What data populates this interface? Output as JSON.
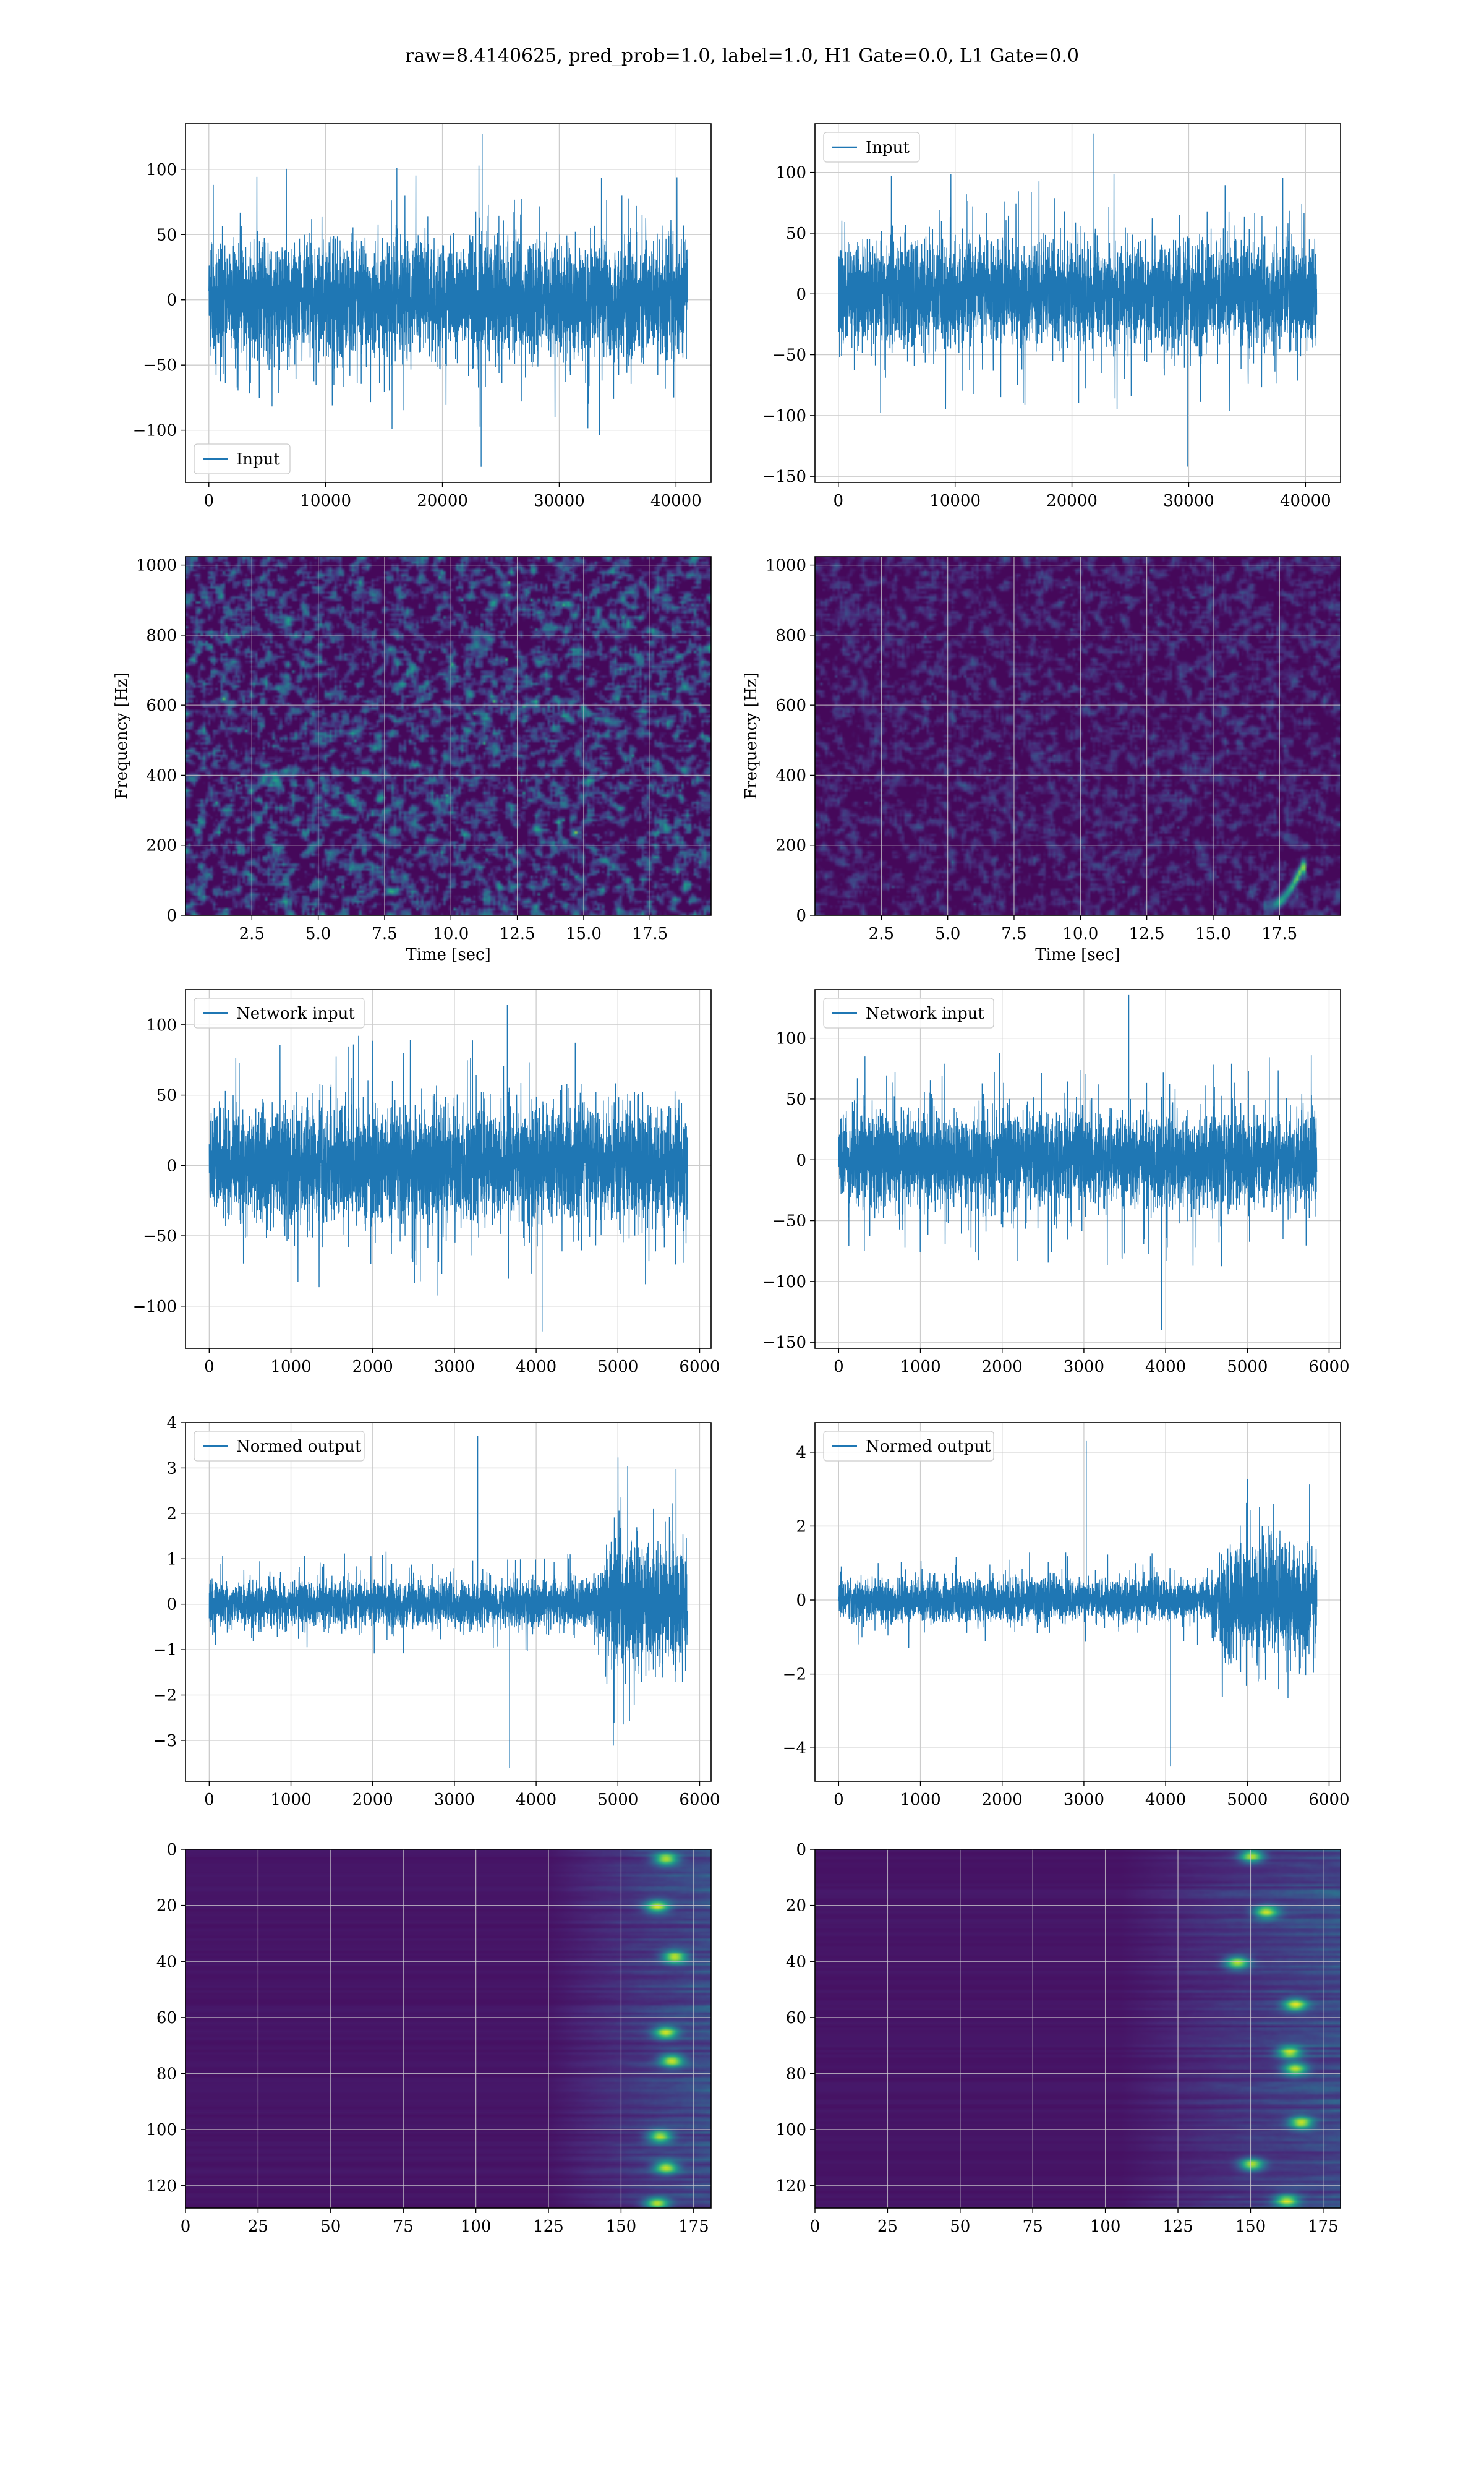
{
  "figure": {
    "suptitle": "raw=8.4140625, pred_prob=1.0, label=1.0, H1 Gate=0.0, L1 Gate=0.0"
  },
  "colors": {
    "line": "#1f77b4",
    "grid": "#cccccc",
    "viridis_low": "#440154",
    "viridis_mid": "#21918c",
    "viridis_high": "#fde725"
  },
  "chart_data": [
    {
      "id": "input-h1",
      "type": "line",
      "row": 0,
      "col": 0,
      "legend": {
        "label": "Input",
        "loc": "lower-left"
      },
      "xlim": [
        -2000,
        43000
      ],
      "ylim": [
        -140,
        135
      ],
      "xticks": [
        0,
        10000,
        20000,
        30000,
        40000
      ],
      "xticklabels": [
        "0",
        "10000",
        "20000",
        "30000",
        "40000"
      ],
      "yticks": [
        -100,
        -50,
        0,
        50,
        100
      ],
      "yticklabels": [
        "−100",
        "−50",
        "0",
        "50",
        "100"
      ],
      "grid": true,
      "signal": {
        "n": 40960,
        "x_start": 0,
        "x_end": 40960,
        "band": 40,
        "spike_max": 127,
        "spike_min": -128
      }
    },
    {
      "id": "input-l1",
      "type": "line",
      "row": 0,
      "col": 1,
      "legend": {
        "label": "Input",
        "loc": "upper-left"
      },
      "xlim": [
        -2000,
        43000
      ],
      "ylim": [
        -155,
        140
      ],
      "xticks": [
        0,
        10000,
        20000,
        30000,
        40000
      ],
      "xticklabels": [
        "0",
        "10000",
        "20000",
        "30000",
        "40000"
      ],
      "yticks": [
        -150,
        -100,
        -50,
        0,
        50,
        100
      ],
      "yticklabels": [
        "−150",
        "−100",
        "−50",
        "0",
        "50",
        "100"
      ],
      "grid": true,
      "signal": {
        "n": 40960,
        "x_start": 0,
        "x_end": 40960,
        "band": 38,
        "spike_max": 132,
        "spike_min": -142
      }
    },
    {
      "id": "spectrogram-h1",
      "type": "heatmap",
      "row": 1,
      "col": 0,
      "xlabel": "Time [sec]",
      "ylabel": "Frequency [Hz]",
      "xlim": [
        0,
        19.8
      ],
      "ylim": [
        0,
        1024
      ],
      "xticks": [
        2.5,
        5.0,
        7.5,
        10.0,
        12.5,
        15.0,
        17.5
      ],
      "xticklabels": [
        "2.5",
        "5.0",
        "7.5",
        "10.0",
        "12.5",
        "15.0",
        "17.5"
      ],
      "yticks": [
        0,
        200,
        400,
        600,
        800,
        1000
      ],
      "yticklabels": [
        "0",
        "200",
        "400",
        "600",
        "800",
        "1000"
      ],
      "grid": true,
      "colormap": "viridis",
      "noise_level": 0.28,
      "chirp": null
    },
    {
      "id": "spectrogram-l1",
      "type": "heatmap",
      "row": 1,
      "col": 1,
      "xlabel": "Time [sec]",
      "ylabel": "Frequency [Hz]",
      "xlim": [
        0,
        19.8
      ],
      "ylim": [
        0,
        1024
      ],
      "xticks": [
        2.5,
        5.0,
        7.5,
        10.0,
        12.5,
        15.0,
        17.5
      ],
      "xticklabels": [
        "2.5",
        "5.0",
        "7.5",
        "10.0",
        "12.5",
        "15.0",
        "17.5"
      ],
      "yticks": [
        0,
        200,
        400,
        600,
        800,
        1000
      ],
      "yticklabels": [
        "0",
        "200",
        "400",
        "600",
        "800",
        "1000"
      ],
      "grid": true,
      "colormap": "viridis",
      "noise_level": 0.13,
      "chirp": {
        "t_start": 17.0,
        "t_end": 18.3,
        "f_start": 30,
        "f_end": 140
      }
    },
    {
      "id": "network-input-h1",
      "type": "line",
      "row": 2,
      "col": 0,
      "legend": {
        "label": "Network input",
        "loc": "upper-left"
      },
      "xlim": [
        -290,
        6140
      ],
      "ylim": [
        -130,
        125
      ],
      "xticks": [
        0,
        1000,
        2000,
        3000,
        4000,
        5000,
        6000
      ],
      "xticklabels": [
        "0",
        "1000",
        "2000",
        "3000",
        "4000",
        "5000",
        "6000"
      ],
      "yticks": [
        -100,
        -50,
        0,
        50,
        100
      ],
      "yticklabels": [
        "−100",
        "−50",
        "0",
        "50",
        "100"
      ],
      "grid": true,
      "signal": {
        "n": 5850,
        "x_start": 0,
        "x_end": 5850,
        "band": 36,
        "spike_max": 114,
        "spike_min": -118
      }
    },
    {
      "id": "network-input-l1",
      "type": "line",
      "row": 2,
      "col": 1,
      "legend": {
        "label": "Network input",
        "loc": "upper-left"
      },
      "xlim": [
        -290,
        6140
      ],
      "ylim": [
        -155,
        140
      ],
      "xticks": [
        0,
        1000,
        2000,
        3000,
        4000,
        5000,
        6000
      ],
      "xticklabels": [
        "0",
        "1000",
        "2000",
        "3000",
        "4000",
        "5000",
        "6000"
      ],
      "yticks": [
        -150,
        -100,
        -50,
        0,
        50,
        100
      ],
      "yticklabels": [
        "−150",
        "−100",
        "−50",
        "0",
        "50",
        "100"
      ],
      "grid": true,
      "signal": {
        "n": 5850,
        "x_start": 0,
        "x_end": 5850,
        "band": 34,
        "spike_max": 136,
        "spike_min": -140
      }
    },
    {
      "id": "normed-output-h1",
      "type": "line",
      "row": 3,
      "col": 0,
      "legend": {
        "label": "Normed output",
        "loc": "upper-left"
      },
      "xlim": [
        -290,
        6140
      ],
      "ylim": [
        -3.9,
        4.0
      ],
      "xticks": [
        0,
        1000,
        2000,
        3000,
        4000,
        5000,
        6000
      ],
      "xticklabels": [
        "0",
        "1000",
        "2000",
        "3000",
        "4000",
        "5000",
        "6000"
      ],
      "yticks": [
        -3,
        -2,
        -1,
        0,
        1,
        2,
        3,
        4
      ],
      "yticklabels": [
        "−3",
        "−2",
        "−1",
        "0",
        "1",
        "2",
        "3",
        "4"
      ],
      "grid": true,
      "signal": {
        "n": 5850,
        "x_start": 0,
        "x_end": 5850,
        "band": 0.45,
        "spike_max": 3.7,
        "spike_min": -3.6,
        "burst_start": 4700,
        "burst_band": 1.25
      }
    },
    {
      "id": "normed-output-l1",
      "type": "line",
      "row": 3,
      "col": 1,
      "legend": {
        "label": "Normed output",
        "loc": "upper-left"
      },
      "xlim": [
        -290,
        6140
      ],
      "ylim": [
        -4.9,
        4.8
      ],
      "xticks": [
        0,
        1000,
        2000,
        3000,
        4000,
        5000,
        6000
      ],
      "xticklabels": [
        "0",
        "1000",
        "2000",
        "3000",
        "4000",
        "5000",
        "6000"
      ],
      "yticks": [
        -4,
        -2,
        0,
        2,
        4
      ],
      "yticklabels": [
        "−4",
        "−2",
        "0",
        "2",
        "4"
      ],
      "grid": true,
      "signal": {
        "n": 5850,
        "x_start": 0,
        "x_end": 5850,
        "band": 0.5,
        "spike_max": 4.3,
        "spike_min": -4.5,
        "burst_start": 4550,
        "burst_band": 1.4
      }
    },
    {
      "id": "feature-map-h1",
      "type": "heatmap",
      "row": 4,
      "col": 0,
      "xlim": [
        0,
        181
      ],
      "ylim": [
        128,
        0
      ],
      "xticks": [
        0,
        25,
        50,
        75,
        100,
        125,
        150,
        175
      ],
      "xticklabels": [
        "0",
        "25",
        "50",
        "75",
        "100",
        "125",
        "150",
        "175"
      ],
      "yticks": [
        0,
        20,
        40,
        60,
        80,
        100,
        120
      ],
      "yticklabels": [
        "0",
        "20",
        "40",
        "60",
        "80",
        "100",
        "120"
      ],
      "grid": true,
      "colormap": "viridis",
      "activity_onset": 125,
      "hotspots": [
        [
          165,
          3
        ],
        [
          162,
          20
        ],
        [
          168,
          38
        ],
        [
          165,
          65
        ],
        [
          167,
          75
        ],
        [
          163,
          102
        ],
        [
          165,
          113
        ],
        [
          162,
          126
        ]
      ]
    },
    {
      "id": "feature-map-l1",
      "type": "heatmap",
      "row": 4,
      "col": 1,
      "xlim": [
        0,
        181
      ],
      "ylim": [
        128,
        0
      ],
      "xticks": [
        0,
        25,
        50,
        75,
        100,
        125,
        150,
        175
      ],
      "xticklabels": [
        "0",
        "25",
        "50",
        "75",
        "100",
        "125",
        "150",
        "175"
      ],
      "yticks": [
        0,
        20,
        40,
        60,
        80,
        100,
        120
      ],
      "yticklabels": [
        "0",
        "20",
        "40",
        "60",
        "80",
        "100",
        "120"
      ],
      "grid": true,
      "colormap": "viridis",
      "activity_onset": 105,
      "hotspots": [
        [
          150,
          2
        ],
        [
          155,
          22
        ],
        [
          145,
          40
        ],
        [
          165,
          55
        ],
        [
          163,
          72
        ],
        [
          165,
          78
        ],
        [
          167,
          97
        ],
        [
          150,
          112
        ],
        [
          162,
          125
        ]
      ]
    }
  ]
}
